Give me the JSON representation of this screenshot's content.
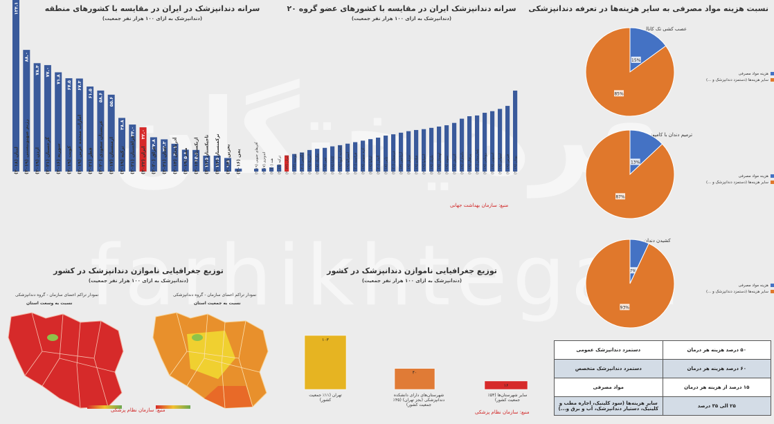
{
  "colors": {
    "blue": "#3a5a9b",
    "red": "#d62a2a",
    "orange": "#e0782c",
    "pie_blue": "#4472c4",
    "gold": "#e6b422",
    "deep_orange": "#e07b36"
  },
  "watermark": {
    "logo": "فرهیختگان",
    "text": "farhikhtegan"
  },
  "chart1": {
    "title": "سرانه دندانپزشک در ایران در مقایسه با کشورهای منطقه",
    "subtitle": "(دندانپزشک به ازای ۱۰۰ هزار نفر جمعیت)"
  },
  "chart2": {
    "title": "سرانه دندانپزشک ایران در مقایسه با کشورهای عضو گروه ۲۰",
    "subtitle": "(دندانپزشک به ازای ۱۰۰ هزار نفر جمعیت)",
    "source": "منبع: سازمان بهداشت جهانی"
  },
  "chart3": {
    "title": "نسبت هزینه مواد مصرفی به سایر هزینه‌ها در تعرفه دندانپزشکی",
    "legend_a": "هزینه مواد مصرفی",
    "legend_b": "سایر هزینه‌ها (دستمزد دندانپزشک و ...)"
  },
  "map_section": {
    "title": "توزیع جغرافیایی ناموازن دندانپزشک در کشور",
    "subtitle": "(دندانپزشک به ازای ۱۰۰ هزار نفر جمعیت)",
    "map1_caption": "نمودار تراکم اعضای سازمان - گروه دندانپزشکی",
    "map1_sub": "نسبت به وسعت استان",
    "map2_caption": "نمودار تراکم اعضای سازمان - گروه دندانپزشکی",
    "map2_sub": "نسبت به جمعیت استان",
    "source": "منبع: سازمان نظام پزشکی"
  },
  "dist_section": {
    "title": "توزیع جغرافیایی ناموازن دندانپزشک در کشور",
    "subtitle": "(دندانپزشک به ازای ۱۰۰ هزار نفر جمعیت)",
    "source": "منبع: سازمان نظام پزشکی"
  },
  "cost_table": {
    "rows": [
      {
        "label": "دستمزد دندانپزشک عمومی",
        "value": "۵۰ درصد هزینه هر درمان"
      },
      {
        "label": "دستمزد دندانپزشک متخصص",
        "value": "۶۰ درصد هزینه هر درمان"
      },
      {
        "label": "مواد مصرفی",
        "value": "۱۵ درصد از هزینه هر درمان"
      },
      {
        "label": "سایر هزینه‌ها (سود کلینیک، اجاره مطب و کلینیک، دستیار دندانپزشک، آب و برق و...)",
        "value": "۲۵ الی ۳۵ درصد"
      }
    ]
  },
  "chart_data": [
    {
      "type": "bar",
      "title": "سرانه دندانپزشک در ایران در مقایسه با کشورهای منطقه",
      "categories": [
        "لبنان (۲۰۱۸)",
        "رژیم صهیونیستی (۲۰۱۹)",
        "اردن (۲۰۱۹)",
        "گرجستان (۲۰۲۱)",
        "سوریه (۲۰۱۶)",
        "کویت (۲۰۱۹)",
        "امارات متحده عربی (۲۰۱۹)",
        "قطر (۲۰۲۱)",
        "عربستان سعودی (۲۰۲۰)",
        "ارمنستان (۲۰۱۷)",
        "ترکیه (۲۰۱۹)",
        "قزاقستان (۲۰۲۱)",
        "ایران (۲۰۲۲)",
        "عراق (۲۰۲۰)",
        "عمان (۲۰۲۱)",
        "آذربایجان (۲۰۱۴)",
        "مصر (۲۰۱۹)",
        "ازبکستان (۲۰۱۴)",
        "تاجیکستان (۲۰۱۴)",
        "ترکمنستان (۲۰۱۴)",
        "بحرین (۲۰۱۴)",
        "یمن (۲۰۱۶)"
      ],
      "values": [
        124.1,
        88.0,
        78.4,
        77.0,
        71.8,
        67.5,
        67.3,
        61.5,
        58.6,
        55.6,
        38.8,
        34.0,
        32.0,
        24.8,
        23.3,
        20.1,
        15.8,
        15.6,
        11.5,
        11.5,
        9.8,
        2.1
      ],
      "labels": [
        "۱۲۴.۱",
        "۸۸.۰",
        "۷۸.۴",
        "۷۷.۰",
        "۷۱.۸",
        "۶۷.۵",
        "۶۷.۳",
        "۶۱.۵",
        "۵۸.۶",
        "۵۵.۶",
        "۳۸.۸",
        "۳۴.۰",
        "۳۲.۰",
        "۲۴.۸",
        "۲۳.۳",
        "۲۰.۱",
        "۱۵.۸",
        "۱۵.۶",
        "۱۱.۵",
        "۱۱.۵",
        "۹.۸",
        "۲.۱"
      ],
      "highlight_index": 12
    },
    {
      "type": "bar",
      "title": "سرانه دندانپزشک ایران در مقایسه با کشورهای عضو گروه ۲۰",
      "categories": [
        "آفریقای جنوبی (۲۰۱۹)",
        "اندونزی (۲۰۱۷)",
        "هند (۲۰۲۰)",
        "ترکیه (۲۰۱۹)",
        "ایران (۲۰۲۲)",
        "روسیه (۲۰۱۴)",
        "انگلیس (۲۰۲۰)",
        "آمریکا (۲۰۱۹)",
        "مکزیک (۲۰۱۸)",
        "چین (۲۰۱۹)",
        "کانادا (۲۰۱۹)",
        "اتحادیه اروپا (۲۰۱۹)",
        "استرالیا (۲۰۱۹)",
        "فرانسه (۲۰۲۰)",
        "کره جنوبی (۲۰۱۹)",
        "ایتالیا (۲۰۱۹)",
        "آلمان (۲۰۲۰)",
        "ژاپن (۲۰۱۸)",
        "عربستان (۲۰۲۰)",
        "آرژانتین (۲۰۱۳)",
        "برزیل (۲۰۱۹)",
        "فنلاند (۲۰۱۹)",
        "اسپانیا (۲۰۱۹)",
        "بلژیک (۲۰۱۹)",
        "لهستان (۲۰۱۹)",
        "سوئد (۲۰۱۹)",
        "اتریش (۲۰۱۹)",
        "دانمارک (۲۰۱۹)",
        "پرتغال (۲۰۱۹)",
        "بلغارستان (۲۰۲۰)",
        "رومانی (۲۰۱۹)",
        "استونی (۲۰۱۹)",
        "لیتوانی (۲۰۱۹)",
        "قبرس (۲۰۱۹)",
        "یونان (۲۰۱۹)"
      ],
      "values": [
        2.6,
        2.8,
        3.8,
        6.2,
        15.0,
        16.3,
        17.7,
        20.0,
        21.1,
        22.0,
        23.4,
        24.5,
        25.9,
        27.3,
        28.7,
        30.1,
        31.5,
        33.4,
        34.6,
        36.1,
        37.5,
        38.6,
        39.4,
        40.6,
        41.8,
        43.0,
        45.2,
        49.1,
        51.4,
        52.1,
        54.6,
        56.1,
        58.2,
        61.0,
        75.2
      ],
      "highlight_index": 4
    },
    {
      "type": "pie",
      "title": "عصب کشی تک کانال",
      "labels": [
        "هزینه مواد مصرفی",
        "سایر هزینه‌ها (دستمزد دندانپزشک و ...)"
      ],
      "values": [
        15,
        85
      ],
      "value_labels": [
        "15%",
        "85%"
      ]
    },
    {
      "type": "pie",
      "title": "ترمیم دندان با کامپوزیت",
      "labels": [
        "هزینه مواد مصرفی",
        "سایر هزینه‌ها (دستمزد دندانپزشک و ...)"
      ],
      "values": [
        13,
        87
      ],
      "value_labels": [
        "13%",
        "87%"
      ]
    },
    {
      "type": "pie",
      "title": "کشیدن دندان",
      "labels": [
        "هزینه مواد مصرفی",
        "سایر هزینه‌ها (دستمزد دندانپزشک و ...)"
      ],
      "values": [
        7,
        93
      ],
      "value_labels": [
        "7%",
        "93%"
      ]
    },
    {
      "type": "bar",
      "title": "توزیع جغرافیایی ناموازن دندانپزشک در کشور",
      "categories": [
        "تهران (۱۱٪ جمعیت کشور)",
        "شهرستان‌های دارای دانشکده دندانپزشکی (بجز تهران) (۳۵٪ جمعیت کشور)",
        "سایر شهرستان‌ها (۵۴٪ جمعیت کشور)"
      ],
      "values": [
        103,
        40,
        16
      ],
      "value_labels": [
        "۱۰۳",
        "۴۰",
        "۱۶"
      ]
    }
  ]
}
